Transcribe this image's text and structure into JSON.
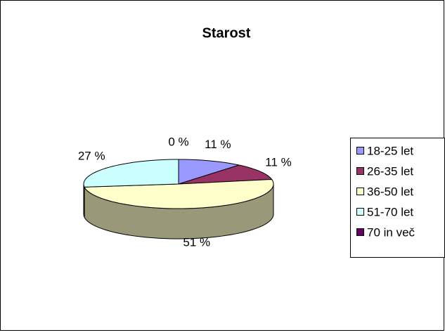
{
  "chart_data": {
    "type": "pie3d",
    "title": "Starost",
    "categories": [
      "18-25 let",
      "26-35 let",
      "36-50 let",
      "51-70 let",
      "70 in več"
    ],
    "values": [
      11,
      11,
      51,
      27,
      0
    ],
    "value_labels": [
      "11 %",
      "11 %",
      "51 %",
      "27 %",
      "0 %"
    ],
    "colors": [
      "#9999ff",
      "#993366",
      "#ffffcc",
      "#ccffff",
      "#660066"
    ],
    "legend": "right"
  }
}
